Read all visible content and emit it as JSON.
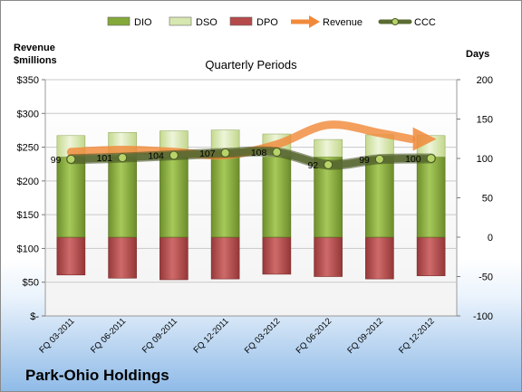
{
  "company": "Park-Ohio Holdings",
  "chart_data": {
    "type": "bar",
    "title": "Quarterly Periods",
    "ylabel_left": "Revenue $millions",
    "ylabel_left_lines": [
      "Revenue",
      "$millions"
    ],
    "ylabel_right": "Days",
    "categories": [
      "FQ 03-2011",
      "FQ 06-2011",
      "FQ 09-2011",
      "FQ 12-2011",
      "FQ 03-2012",
      "FQ 06-2012",
      "FQ 09-2012",
      "FQ 12-2012"
    ],
    "left_axis": {
      "ticks": [
        "$-",
        "$50",
        "$100",
        "$150",
        "$200",
        "$250",
        "$300",
        "$350"
      ],
      "ylim": [
        0,
        350
      ]
    },
    "right_axis": {
      "ticks": [
        "-100",
        "-50",
        "0",
        "50",
        "100",
        "150",
        "200"
      ],
      "ylim": [
        -100,
        200
      ]
    },
    "legend_position": "top",
    "grid": true,
    "series": [
      {
        "name": "DIO",
        "kind": "stacked-bar",
        "axis": "days",
        "values": [
          102,
          102,
          102,
          102,
          102,
          102,
          102,
          102
        ],
        "color": "#84a83a"
      },
      {
        "name": "DSO",
        "kind": "stacked-bar",
        "axis": "days",
        "values": [
          27,
          31,
          33,
          34,
          29,
          22,
          28,
          27
        ],
        "color": "#d7e7b0"
      },
      {
        "name": "DPO",
        "kind": "stacked-bar",
        "axis": "days",
        "values": [
          -48,
          -52,
          -54,
          -53,
          -47,
          -50,
          -53,
          -49
        ],
        "color": "#b54a4b"
      },
      {
        "name": "Revenue",
        "kind": "line",
        "axis": "revenue",
        "values": [
          243,
          246,
          243,
          238,
          254,
          283,
          271,
          262
        ],
        "color": "#f08a3a"
      },
      {
        "name": "CCC",
        "kind": "line",
        "axis": "days",
        "values": [
          99,
          101,
          104,
          107,
          108,
          92,
          99,
          100
        ],
        "labels": [
          "99",
          "101",
          "104",
          "107",
          "108",
          "92",
          "99",
          "100"
        ],
        "color": "#5b6b32"
      }
    ]
  }
}
